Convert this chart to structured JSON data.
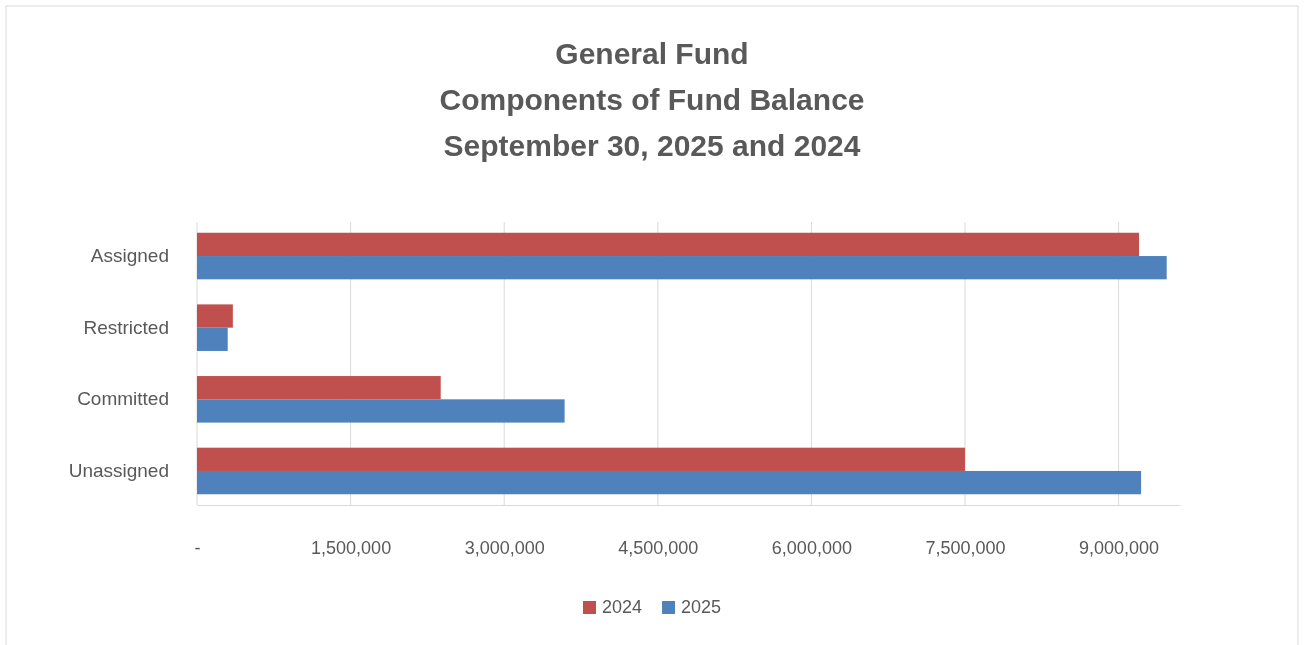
{
  "chart_data": {
    "type": "bar",
    "orientation": "horizontal",
    "title": "General Fund\nComponents of Fund Balance\nSeptember 30, 2025 and 2024",
    "categories": [
      "Assigned",
      "Restricted",
      "Committed",
      "Unassigned"
    ],
    "series": [
      {
        "name": "2024",
        "color": "#c0504d",
        "values": [
          9200000,
          350000,
          2380000,
          7500000
        ]
      },
      {
        "name": "2025",
        "color": "#4f81bd",
        "values": [
          9470000,
          300000,
          3590000,
          9220000
        ]
      }
    ],
    "xlim": [
      0,
      9600000
    ],
    "xticks": [
      {
        "value": 0,
        "label": "-"
      },
      {
        "value": 1500000,
        "label": "1,500,000"
      },
      {
        "value": 3000000,
        "label": "3,000,000"
      },
      {
        "value": 4500000,
        "label": "4,500,000"
      },
      {
        "value": 6000000,
        "label": "6,000,000"
      },
      {
        "value": 7500000,
        "label": "7,500,000"
      },
      {
        "value": 9000000,
        "label": "9,000,000"
      }
    ],
    "grid": "x",
    "legend": "bottom"
  }
}
